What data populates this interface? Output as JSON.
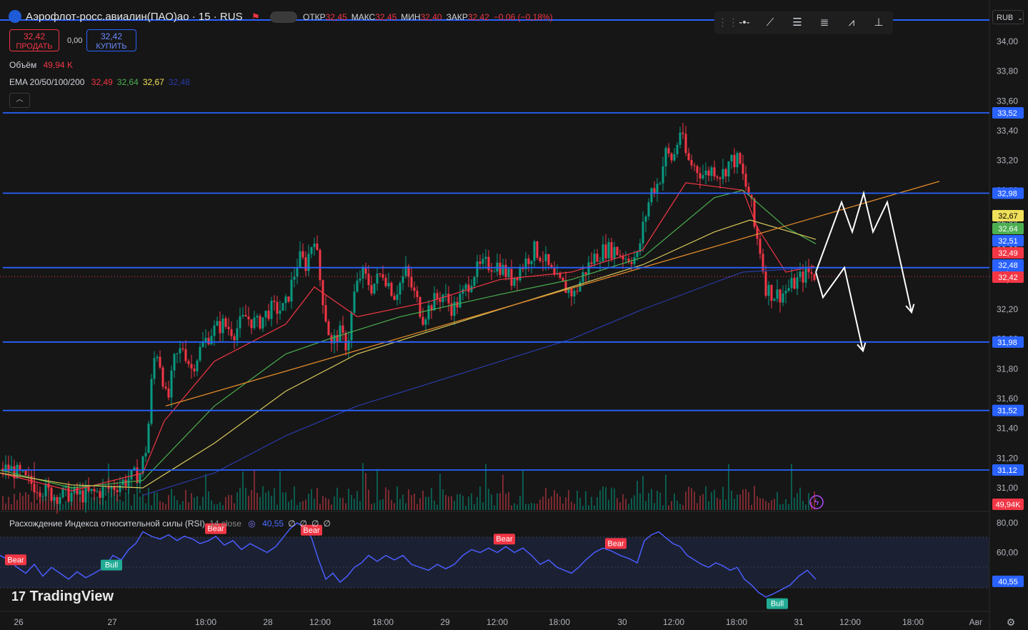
{
  "header": {
    "title": "Аэрофлот-росс.авиалин(ПАО)ао · 15 · RUS",
    "ohlc": [
      {
        "k": "ОТКР",
        "v": "32,45"
      },
      {
        "k": "МАКС",
        "v": "32,45"
      },
      {
        "k": "МИН",
        "v": "32,40"
      },
      {
        "k": "ЗАКР",
        "v": "32,42"
      },
      {
        "k": "",
        "v": "−0,06 (−0,18%)"
      }
    ],
    "sell_price": "32,42",
    "sell_label": "ПРОДАТЬ",
    "spread": "0,00",
    "buy_price": "32,42",
    "buy_label": "КУПИТЬ",
    "currency": "RUB"
  },
  "indicators": {
    "volume_label": "Объём",
    "volume_value": "49,94 K",
    "ema_label": "EMA 20/50/100/200",
    "ema_values": [
      "32,49",
      "32,64",
      "32,67",
      "32,48"
    ],
    "ema_colors": [
      "#f23645",
      "#4caf50",
      "#f0e05a",
      "#2a3aa8"
    ],
    "rsi_label": "Расхождение Индекса относительной силы (RSI)",
    "rsi_params": "14 close",
    "rsi_values": [
      "40,55",
      "∅",
      "∅",
      "∅",
      "∅"
    ]
  },
  "colors": {
    "up": "#089981",
    "down": "#f23645",
    "level": "#2962ff",
    "trend": "#e0892a",
    "rsi": "#4a5cff",
    "accent": "#2962ff"
  },
  "branding": "TradingView",
  "chart_data": [
    {
      "type": "candlestick",
      "title": "Аэрофлот-росс.авиалин(ПАО)ао · 15 · RUS",
      "x_ticks": [
        "26",
        "27",
        "18:00",
        "28",
        "12:00",
        "18:00",
        "29",
        "12:00",
        "18:00",
        "30",
        "12:00",
        "18:00",
        "31",
        "12:00",
        "18:00",
        "Авг"
      ],
      "y_ticks": [
        "34,00",
        "33,80",
        "33,60",
        "33,40",
        "33,20",
        "33,00",
        "32,80",
        "32,60",
        "32,40",
        "32,20",
        "32,00",
        "31,80",
        "31,60",
        "31,40",
        "31,20",
        "31,00"
      ],
      "ylim": [
        30.94,
        34.1
      ],
      "path": [
        [
          0,
          31.13
        ],
        [
          18,
          31.12
        ],
        [
          36,
          31.05
        ],
        [
          56,
          31.0
        ],
        [
          76,
          30.95
        ],
        [
          96,
          30.96
        ],
        [
          116,
          30.95
        ],
        [
          136,
          30.97
        ],
        [
          156,
          31.0
        ],
        [
          176,
          31.05
        ],
        [
          196,
          31.1
        ],
        [
          206,
          31.3
        ],
        [
          212,
          31.7
        ],
        [
          218,
          31.95
        ],
        [
          226,
          31.8
        ],
        [
          234,
          31.55
        ],
        [
          244,
          31.85
        ],
        [
          256,
          31.95
        ],
        [
          268,
          31.8
        ],
        [
          282,
          31.95
        ],
        [
          296,
          32.05
        ],
        [
          312,
          32.1
        ],
        [
          328,
          32.05
        ],
        [
          344,
          32.15
        ],
        [
          360,
          32.1
        ],
        [
          378,
          32.2
        ],
        [
          398,
          32.2
        ],
        [
          410,
          32.4
        ],
        [
          418,
          32.55
        ],
        [
          428,
          32.5
        ],
        [
          440,
          32.7
        ],
        [
          448,
          32.4
        ],
        [
          456,
          32.15
        ],
        [
          464,
          31.95
        ],
        [
          474,
          32.05
        ],
        [
          486,
          31.95
        ],
        [
          496,
          32.3
        ],
        [
          506,
          32.45
        ],
        [
          520,
          32.35
        ],
        [
          536,
          32.45
        ],
        [
          552,
          32.3
        ],
        [
          568,
          32.45
        ],
        [
          580,
          32.3
        ],
        [
          592,
          32.15
        ],
        [
          606,
          32.25
        ],
        [
          620,
          32.3
        ],
        [
          634,
          32.2
        ],
        [
          648,
          32.3
        ],
        [
          664,
          32.45
        ],
        [
          680,
          32.5
        ],
        [
          698,
          32.5
        ],
        [
          716,
          32.4
        ],
        [
          732,
          32.5
        ],
        [
          748,
          32.6
        ],
        [
          760,
          32.55
        ],
        [
          776,
          32.4
        ],
        [
          790,
          32.35
        ],
        [
          804,
          32.3
        ],
        [
          818,
          32.45
        ],
        [
          832,
          32.55
        ],
        [
          846,
          32.6
        ],
        [
          860,
          32.6
        ],
        [
          876,
          32.55
        ],
        [
          892,
          32.55
        ],
        [
          902,
          32.8
        ],
        [
          912,
          33.0
        ],
        [
          922,
          33.05
        ],
        [
          932,
          33.25
        ],
        [
          942,
          33.2
        ],
        [
          952,
          33.4
        ],
        [
          962,
          33.2
        ],
        [
          974,
          33.15
        ],
        [
          986,
          33.1
        ],
        [
          998,
          33.15
        ],
        [
          1010,
          33.1
        ],
        [
          1022,
          33.2
        ],
        [
          1034,
          33.2
        ],
        [
          1042,
          33.05
        ],
        [
          1050,
          32.95
        ],
        [
          1056,
          32.75
        ],
        [
          1064,
          32.6
        ],
        [
          1072,
          32.35
        ],
        [
          1082,
          32.3
        ],
        [
          1094,
          32.3
        ],
        [
          1106,
          32.35
        ],
        [
          1118,
          32.4
        ],
        [
          1130,
          32.45
        ],
        [
          1142,
          32.42
        ]
      ],
      "levels": [
        33.52,
        32.98,
        32.48,
        31.98,
        31.52,
        31.12
      ],
      "level_labels": [
        "33,52",
        "32,98",
        "32,48",
        "31,98",
        "31,52",
        "31,12"
      ],
      "price_tags": [
        {
          "label": "32,67",
          "color": "#f0e05a",
          "text": "#000000"
        },
        {
          "label": "32,64",
          "color": "#4caf50",
          "text": "#ffffff"
        },
        {
          "label": "32,51",
          "color": "#2962ff",
          "text": "#ffffff"
        },
        {
          "label": "32,49",
          "color": "#f23645",
          "text": "#ffffff"
        },
        {
          "label": "32,48",
          "color": "#2962ff",
          "text": "#ffffff"
        },
        {
          "label": "32,42",
          "color": "#f23645",
          "text": "#ffffff"
        },
        {
          "label": "49,94K",
          "color": "#f23645",
          "text": "#ffffff"
        }
      ],
      "ema": [
        {
          "name": "EMA 20",
          "color": "#f23645",
          "values": [
            [
              0,
              31.1
            ],
            [
              100,
              30.98
            ],
            [
              200,
              31.1
            ],
            [
              230,
              31.45
            ],
            [
              300,
              31.85
            ],
            [
              400,
              32.1
            ],
            [
              440,
              32.35
            ],
            [
              500,
              32.15
            ],
            [
              600,
              32.25
            ],
            [
              700,
              32.4
            ],
            [
              800,
              32.45
            ],
            [
              900,
              32.6
            ],
            [
              960,
              33.05
            ],
            [
              1040,
              33.0
            ],
            [
              1060,
              32.75
            ],
            [
              1100,
              32.45
            ],
            [
              1140,
              32.49
            ]
          ]
        },
        {
          "name": "EMA 50",
          "color": "#4caf50",
          "values": [
            [
              0,
              31.12
            ],
            [
              100,
              31.0
            ],
            [
              200,
              31.05
            ],
            [
              300,
              31.55
            ],
            [
              400,
              31.9
            ],
            [
              460,
              32.0
            ],
            [
              560,
              32.15
            ],
            [
              700,
              32.3
            ],
            [
              800,
              32.4
            ],
            [
              900,
              32.55
            ],
            [
              1000,
              32.95
            ],
            [
              1040,
              33.0
            ],
            [
              1100,
              32.75
            ],
            [
              1142,
              32.64
            ]
          ]
        },
        {
          "name": "EMA 100",
          "color": "#d8c85a",
          "values": [
            [
              0,
              31.1
            ],
            [
              100,
              31.02
            ],
            [
              200,
              31.0
            ],
            [
              300,
              31.3
            ],
            [
              400,
              31.65
            ],
            [
              500,
              31.9
            ],
            [
              600,
              32.05
            ],
            [
              700,
              32.2
            ],
            [
              800,
              32.35
            ],
            [
              900,
              32.5
            ],
            [
              1000,
              32.72
            ],
            [
              1050,
              32.8
            ],
            [
              1142,
              32.67
            ]
          ]
        },
        {
          "name": "EMA 200",
          "color": "#2a3aa8",
          "values": [
            [
              200,
              30.95
            ],
            [
              300,
              31.1
            ],
            [
              400,
              31.35
            ],
            [
              500,
              31.55
            ],
            [
              600,
              31.7
            ],
            [
              700,
              31.85
            ],
            [
              800,
              32.0
            ],
            [
              900,
              32.2
            ],
            [
              1000,
              32.38
            ],
            [
              1040,
              32.45
            ],
            [
              1142,
              32.48
            ]
          ]
        }
      ],
      "trendline": {
        "color": "#e0892a",
        "from": [
          232,
          31.55
        ],
        "to": [
          1315,
          33.06
        ]
      },
      "forecast_paths": [
        [
          [
            1142,
            32.45
          ],
          [
            1178,
            32.92
          ],
          [
            1193,
            32.72
          ],
          [
            1209,
            32.98
          ],
          [
            1222,
            32.72
          ],
          [
            1242,
            32.92
          ],
          [
            1276,
            32.18
          ]
        ],
        [
          [
            1142,
            32.45
          ],
          [
            1152,
            32.28
          ],
          [
            1182,
            32.48
          ],
          [
            1208,
            31.92
          ]
        ]
      ]
    },
    {
      "type": "line",
      "title": "Расхождение Индекса относительной силы (RSI) 14 close",
      "y_ticks": [
        "80,00",
        "60,00",
        "40,00"
      ],
      "ylim": [
        28,
        84
      ],
      "values": [
        [
          0,
          58
        ],
        [
          12,
          55
        ],
        [
          24,
          50
        ],
        [
          36,
          46
        ],
        [
          48,
          52
        ],
        [
          60,
          44
        ],
        [
          72,
          50
        ],
        [
          84,
          46
        ],
        [
          96,
          42
        ],
        [
          108,
          47
        ],
        [
          120,
          43
        ],
        [
          132,
          46
        ],
        [
          146,
          50
        ],
        [
          158,
          58
        ],
        [
          170,
          55
        ],
        [
          180,
          62
        ],
        [
          190,
          66
        ],
        [
          200,
          74
        ],
        [
          212,
          71
        ],
        [
          224,
          69
        ],
        [
          236,
          72
        ],
        [
          248,
          68
        ],
        [
          258,
          71
        ],
        [
          270,
          69
        ],
        [
          280,
          66
        ],
        [
          292,
          68
        ],
        [
          302,
          71
        ],
        [
          314,
          65
        ],
        [
          326,
          68
        ],
        [
          338,
          62
        ],
        [
          350,
          66
        ],
        [
          362,
          63
        ],
        [
          374,
          60
        ],
        [
          386,
          64
        ],
        [
          396,
          70
        ],
        [
          406,
          76
        ],
        [
          416,
          80
        ],
        [
          426,
          77
        ],
        [
          436,
          70
        ],
        [
          446,
          55
        ],
        [
          456,
          42
        ],
        [
          466,
          46
        ],
        [
          476,
          40
        ],
        [
          486,
          44
        ],
        [
          496,
          50
        ],
        [
          506,
          53
        ],
        [
          516,
          58
        ],
        [
          528,
          54
        ],
        [
          540,
          58
        ],
        [
          552,
          55
        ],
        [
          564,
          58
        ],
        [
          576,
          52
        ],
        [
          588,
          50
        ],
        [
          600,
          48
        ],
        [
          612,
          52
        ],
        [
          624,
          49
        ],
        [
          636,
          52
        ],
        [
          648,
          58
        ],
        [
          660,
          62
        ],
        [
          672,
          60
        ],
        [
          684,
          63
        ],
        [
          696,
          60
        ],
        [
          708,
          64
        ],
        [
          720,
          60
        ],
        [
          732,
          63
        ],
        [
          744,
          58
        ],
        [
          756,
          52
        ],
        [
          768,
          55
        ],
        [
          780,
          50
        ],
        [
          790,
          48
        ],
        [
          800,
          46
        ],
        [
          810,
          50
        ],
        [
          820,
          55
        ],
        [
          832,
          60
        ],
        [
          844,
          63
        ],
        [
          856,
          61
        ],
        [
          868,
          58
        ],
        [
          880,
          56
        ],
        [
          892,
          53
        ],
        [
          902,
          68
        ],
        [
          912,
          72
        ],
        [
          922,
          74
        ],
        [
          932,
          70
        ],
        [
          942,
          66
        ],
        [
          952,
          64
        ],
        [
          962,
          58
        ],
        [
          972,
          55
        ],
        [
          982,
          52
        ],
        [
          992,
          50
        ],
        [
          1002,
          53
        ],
        [
          1012,
          51
        ],
        [
          1022,
          48
        ],
        [
          1032,
          50
        ],
        [
          1042,
          42
        ],
        [
          1052,
          38
        ],
        [
          1062,
          33
        ],
        [
          1072,
          30
        ],
        [
          1082,
          32
        ],
        [
          1094,
          35
        ],
        [
          1106,
          38
        ],
        [
          1118,
          44
        ],
        [
          1130,
          48
        ],
        [
          1142,
          42
        ]
      ],
      "last_value": "40,55",
      "divergence_labels": [
        {
          "x": 22,
          "label": "Bear"
        },
        {
          "x": 302,
          "label": "Bear"
        },
        {
          "x": 436,
          "label": "Bear"
        },
        {
          "x": 706,
          "label": "Bear"
        },
        {
          "x": 862,
          "label": "Bear"
        },
        {
          "x": 156,
          "label": "Bull"
        },
        {
          "x": 1088,
          "label": "Bull"
        }
      ]
    },
    {
      "type": "bar",
      "title": "Объём",
      "last_value": "49,94 K"
    }
  ]
}
